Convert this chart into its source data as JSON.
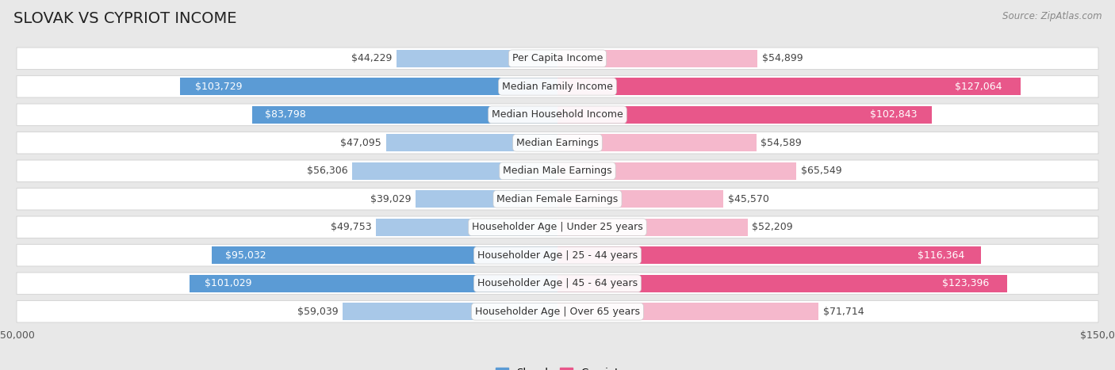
{
  "title": "Slovak vs Cypriot Income",
  "source": "Source: ZipAtlas.com",
  "categories": [
    "Per Capita Income",
    "Median Family Income",
    "Median Household Income",
    "Median Earnings",
    "Median Male Earnings",
    "Median Female Earnings",
    "Householder Age | Under 25 years",
    "Householder Age | 25 - 44 years",
    "Householder Age | 45 - 64 years",
    "Householder Age | Over 65 years"
  ],
  "slovak_values": [
    44229,
    103729,
    83798,
    47095,
    56306,
    39029,
    49753,
    95032,
    101029,
    59039
  ],
  "cypriot_values": [
    54899,
    127064,
    102843,
    54589,
    65549,
    45570,
    52209,
    116364,
    123396,
    71714
  ],
  "slovak_labels": [
    "$44,229",
    "$103,729",
    "$83,798",
    "$47,095",
    "$56,306",
    "$39,029",
    "$49,753",
    "$95,032",
    "$101,029",
    "$59,039"
  ],
  "cypriot_labels": [
    "$54,899",
    "$127,064",
    "$102,843",
    "$54,589",
    "$65,549",
    "$45,570",
    "$52,209",
    "$116,364",
    "$123,396",
    "$71,714"
  ],
  "max_value": 150000,
  "slovak_color_light": "#a8c8e8",
  "slovak_color_dark": "#5b9bd5",
  "cypriot_color_light": "#f5b8cc",
  "cypriot_color_dark": "#e8578a",
  "figure_bg": "#e8e8e8",
  "row_bg": "#f2f2f2",
  "row_edge": "#d8d8d8",
  "title_fontsize": 14,
  "label_fontsize": 9,
  "category_fontsize": 9,
  "axis_label_fontsize": 9,
  "slovak_thresh": 75000,
  "cypriot_thresh": 95000
}
